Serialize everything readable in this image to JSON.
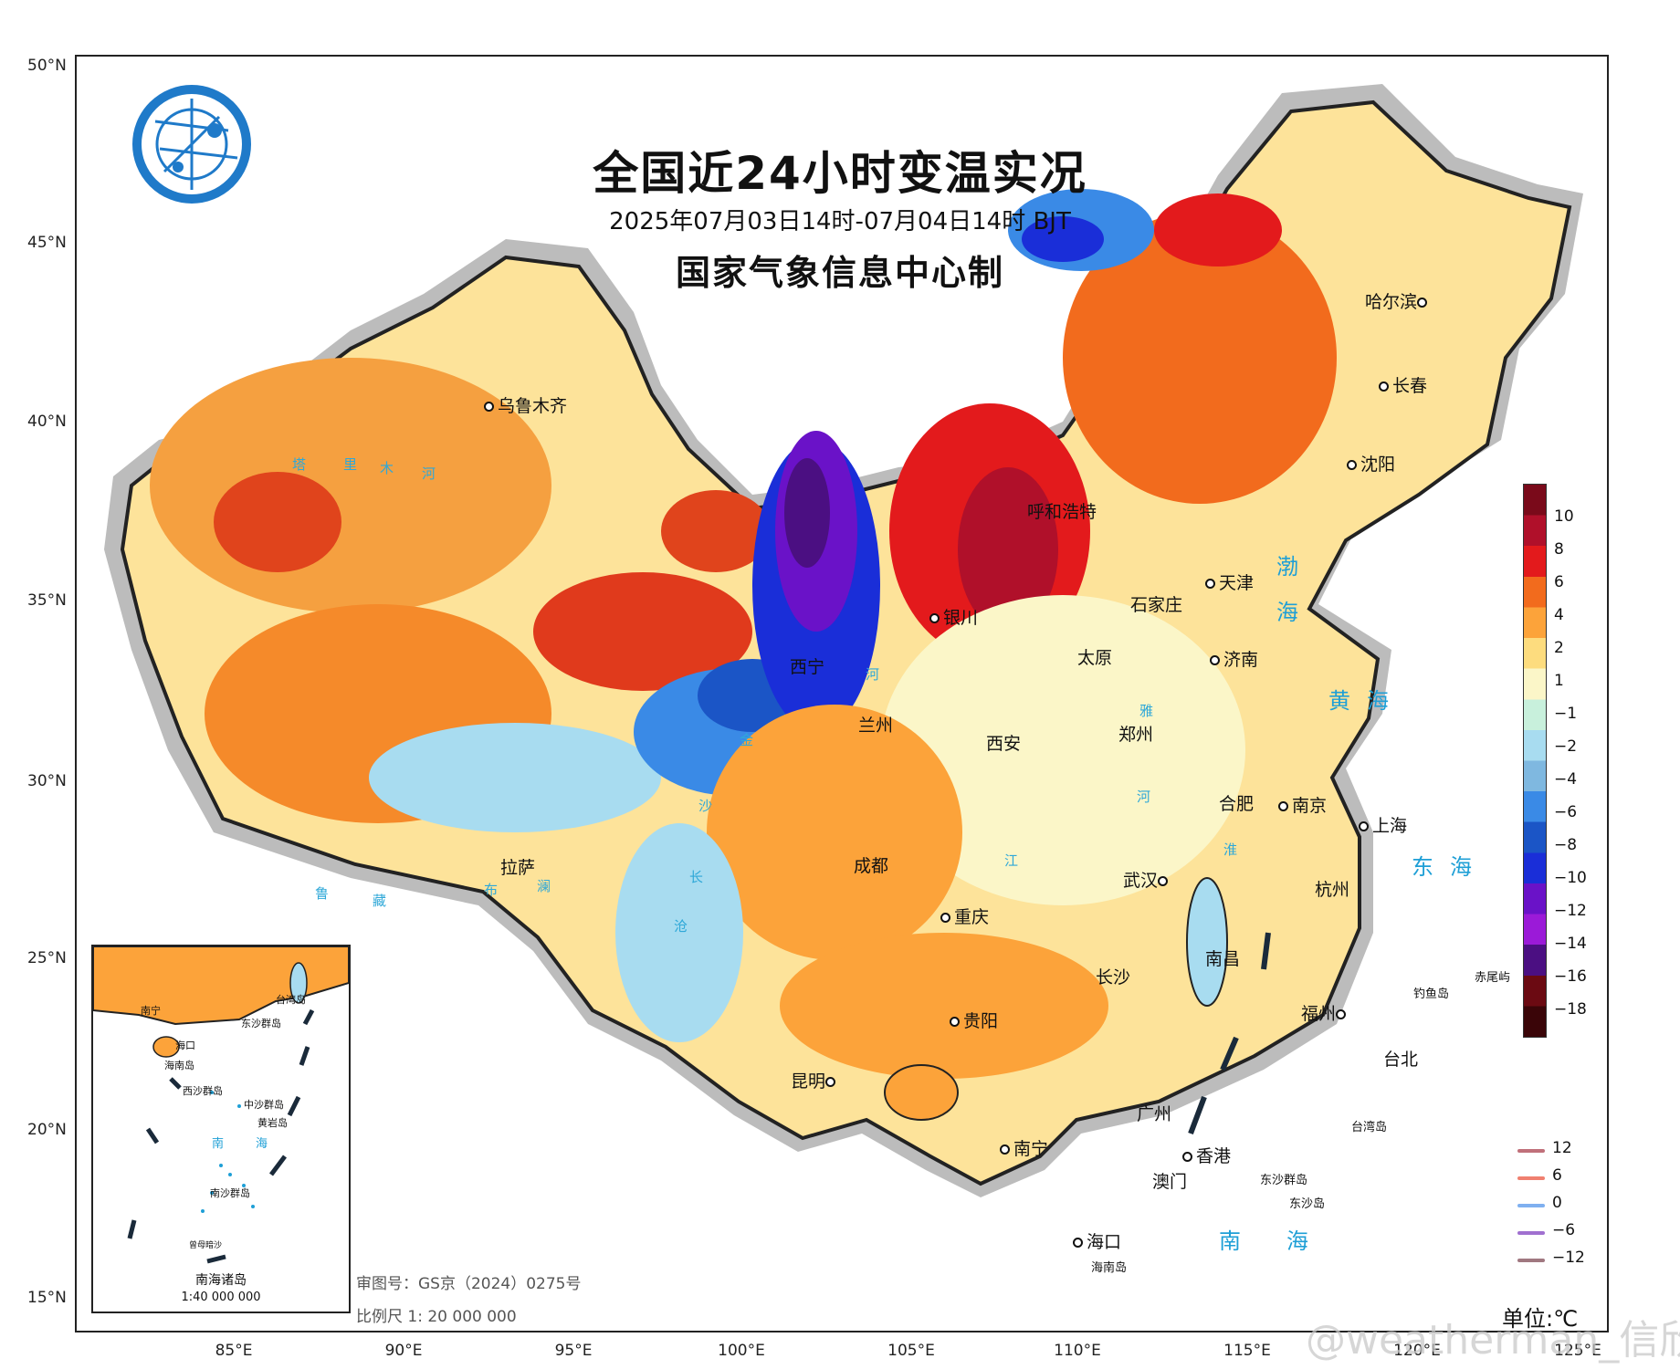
{
  "title": "全国近24小时变温实况",
  "subtitle": "2025年07月03日14时-07月04日14时 BJT",
  "producer": "国家气象信息中心制",
  "axes": {
    "latitude_labels": [
      "50°N",
      "45°N",
      "40°N",
      "35°N",
      "30°N",
      "25°N",
      "20°N",
      "15°N"
    ],
    "longitude_labels": [
      "85°E",
      "90°E",
      "95°E",
      "100°E",
      "105°E",
      "110°E",
      "115°E",
      "120°E",
      "125°E"
    ]
  },
  "colorbar": {
    "ticks": [
      "10",
      "8",
      "6",
      "4",
      "2",
      "1",
      "−1",
      "−2",
      "−4",
      "−6",
      "−8",
      "−10",
      "−12",
      "−14",
      "−16",
      "−18"
    ],
    "colors": [
      "#7a0a1a",
      "#b0102a",
      "#e31a1c",
      "#f26b1d",
      "#fca33a",
      "#fddc7e",
      "#fbf6c8",
      "#c8f0dc",
      "#a8dcf0",
      "#7fb8e0",
      "#3a8ae6",
      "#1b55c6",
      "#1a2ed8",
      "#6a12c8",
      "#9b1ad8",
      "#4b0f82",
      "#6b0a12",
      "#3a0508"
    ]
  },
  "contour_legend": [
    {
      "label": "12",
      "color": "#c0707a"
    },
    {
      "label": "6",
      "color": "#f08070"
    },
    {
      "label": "0",
      "color": "#7fb0f0"
    },
    {
      "label": "−6",
      "color": "#a070d0"
    },
    {
      "label": "−12",
      "color": "#a07880"
    }
  ],
  "cities": [
    {
      "name": "乌鲁木齐"
    },
    {
      "name": "哈尔滨"
    },
    {
      "name": "长春"
    },
    {
      "name": "沈阳"
    },
    {
      "name": "呼和浩特"
    },
    {
      "name": "天津"
    },
    {
      "name": "石家庄"
    },
    {
      "name": "银川"
    },
    {
      "name": "太原"
    },
    {
      "name": "济南"
    },
    {
      "name": "西宁"
    },
    {
      "name": "兰州"
    },
    {
      "name": "郑州"
    },
    {
      "name": "西安"
    },
    {
      "name": "合肥"
    },
    {
      "name": "南京"
    },
    {
      "name": "上海"
    },
    {
      "name": "成都"
    },
    {
      "name": "武汉"
    },
    {
      "name": "杭州"
    },
    {
      "name": "拉萨"
    },
    {
      "name": "重庆"
    },
    {
      "name": "南昌"
    },
    {
      "name": "长沙"
    },
    {
      "name": "福州"
    },
    {
      "name": "贵阳"
    },
    {
      "name": "台北"
    },
    {
      "name": "昆明"
    },
    {
      "name": "广州"
    },
    {
      "name": "南宁"
    },
    {
      "name": "香港"
    },
    {
      "name": "澳门"
    },
    {
      "name": "海口"
    }
  ],
  "seas": [
    "渤海",
    "黄海",
    "东海",
    "南海"
  ],
  "islands": [
    "赤尾屿",
    "钓鱼岛",
    "台湾岛",
    "东沙群岛",
    "东沙岛",
    "海南岛"
  ],
  "rivers": [
    "塔",
    "里",
    "木",
    "河",
    "河",
    "黄",
    "金",
    "沙",
    "长",
    "江",
    "淮",
    "河",
    "雅",
    "鲁",
    "藏",
    "布",
    "澜",
    "沧"
  ],
  "inset": {
    "title": "南海诸岛",
    "scale": "1:40 000 000",
    "labels": [
      "南宁",
      "台湾岛",
      "东沙群岛",
      "海口",
      "海南岛",
      "西沙群岛",
      "中沙群岛",
      "黄岩岛",
      "南",
      "海",
      "南沙群岛",
      "曾母暗沙"
    ]
  },
  "footnotes": {
    "review_number": "审图号：GS京（2024）0275号",
    "scale": "比例尺 1: 20 000 000"
  },
  "unit": "单位:℃",
  "watermark": "@weatherman_信欣"
}
